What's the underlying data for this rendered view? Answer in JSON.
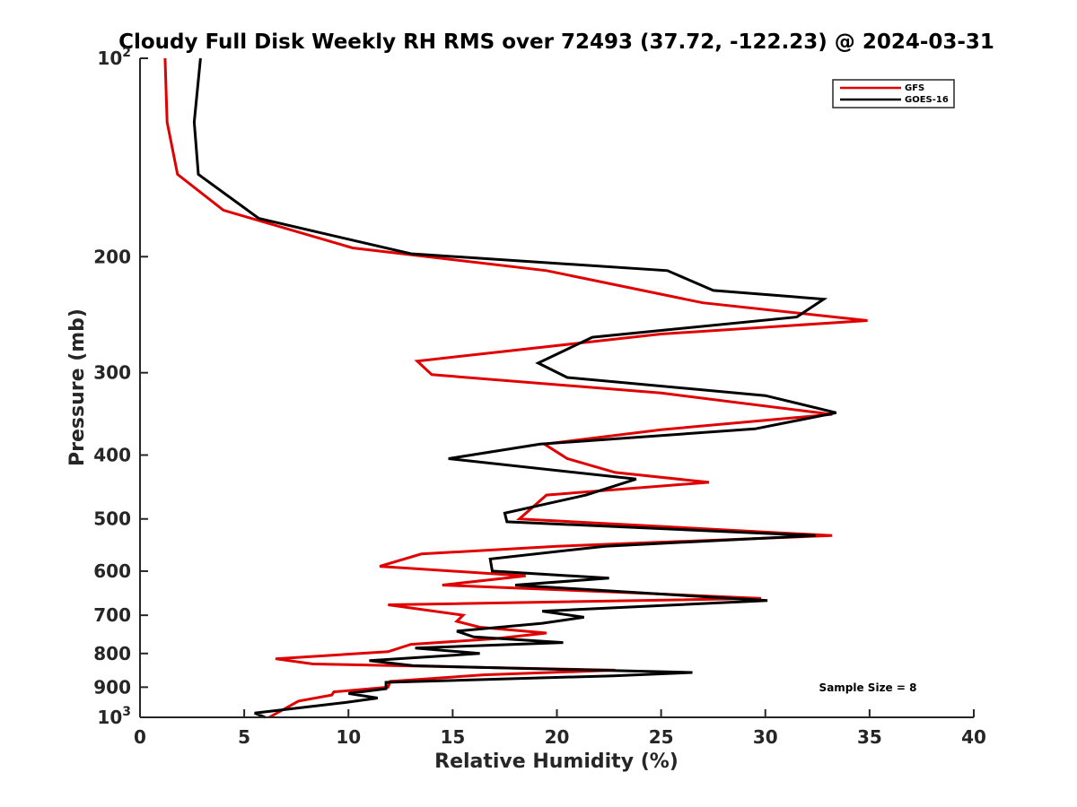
{
  "chart_data": {
    "type": "line",
    "title": "Cloudy Full Disk Weekly RH RMS over 72493 (37.72, -122.23) @ 2024-03-31",
    "xlabel": "Relative Humidity (%)",
    "ylabel": "Pressure (mb)",
    "xlim": [
      0,
      40
    ],
    "ylim": [
      100,
      1000
    ],
    "y_scale": "log",
    "y_reversed": true,
    "x_ticks": [
      0,
      5,
      10,
      15,
      20,
      25,
      30,
      35,
      40
    ],
    "y_ticks": [
      {
        "value": 100,
        "base": "10",
        "exp": "2"
      },
      {
        "value": 200,
        "label": "200"
      },
      {
        "value": 300,
        "label": "300"
      },
      {
        "value": 400,
        "label": "400"
      },
      {
        "value": 500,
        "label": "500"
      },
      {
        "value": 600,
        "label": "600"
      },
      {
        "value": 700,
        "label": "700"
      },
      {
        "value": 800,
        "label": "800"
      },
      {
        "value": 900,
        "label": "900"
      },
      {
        "value": 1000,
        "base": "10",
        "exp": "3"
      }
    ],
    "grid": false,
    "legend_position": "top-right",
    "annotation": "Sample Size = 8",
    "series": [
      {
        "name": "GFS",
        "color": "#e00000",
        "points": [
          [
            1.2,
            100
          ],
          [
            1.3,
            125
          ],
          [
            1.8,
            150
          ],
          [
            4.0,
            170
          ],
          [
            10.2,
            194
          ],
          [
            19.5,
            210
          ],
          [
            27.0,
            235
          ],
          [
            34.9,
            250
          ],
          [
            25.0,
            262
          ],
          [
            13.3,
            288
          ],
          [
            14.0,
            302
          ],
          [
            25.0,
            322
          ],
          [
            33.2,
            347
          ],
          [
            25.0,
            366
          ],
          [
            19.4,
            385
          ],
          [
            20.5,
            405
          ],
          [
            22.8,
            425
          ],
          [
            27.3,
            440
          ],
          [
            19.5,
            460
          ],
          [
            18.2,
            500
          ],
          [
            33.2,
            530
          ],
          [
            20.0,
            550
          ],
          [
            13.5,
            565
          ],
          [
            11.5,
            590
          ],
          [
            18.5,
            610
          ],
          [
            14.5,
            630
          ],
          [
            22.5,
            645
          ],
          [
            29.8,
            660
          ],
          [
            11.9,
            675
          ],
          [
            15.5,
            700
          ],
          [
            15.2,
            715
          ],
          [
            16.3,
            730
          ],
          [
            19.5,
            745
          ],
          [
            17.0,
            760
          ],
          [
            13.0,
            775
          ],
          [
            11.9,
            795
          ],
          [
            6.5,
            815
          ],
          [
            8.3,
            830
          ],
          [
            22.8,
            848
          ],
          [
            16.5,
            862
          ],
          [
            12.0,
            882
          ],
          [
            11.9,
            900
          ],
          [
            9.3,
            915
          ],
          [
            9.2,
            925
          ],
          [
            7.6,
            945
          ],
          [
            6.2,
            1000
          ]
        ]
      },
      {
        "name": "GOES-16",
        "color": "#000000",
        "points": [
          [
            2.9,
            100
          ],
          [
            2.6,
            125
          ],
          [
            2.8,
            150
          ],
          [
            5.7,
            175
          ],
          [
            13.0,
            198
          ],
          [
            25.3,
            210
          ],
          [
            27.5,
            225
          ],
          [
            32.8,
            232
          ],
          [
            31.5,
            247
          ],
          [
            21.7,
            265
          ],
          [
            19.1,
            290
          ],
          [
            20.5,
            305
          ],
          [
            30.0,
            325
          ],
          [
            33.4,
            345
          ],
          [
            29.5,
            365
          ],
          [
            19.2,
            385
          ],
          [
            14.8,
            405
          ],
          [
            23.8,
            435
          ],
          [
            21.4,
            460
          ],
          [
            17.5,
            490
          ],
          [
            17.6,
            505
          ],
          [
            32.4,
            530
          ],
          [
            22.3,
            550
          ],
          [
            16.8,
            575
          ],
          [
            16.9,
            600
          ],
          [
            22.5,
            615
          ],
          [
            18.0,
            630
          ],
          [
            30.1,
            665
          ],
          [
            19.3,
            690
          ],
          [
            21.3,
            705
          ],
          [
            19.3,
            720
          ],
          [
            15.2,
            740
          ],
          [
            16.0,
            755
          ],
          [
            20.3,
            770
          ],
          [
            13.2,
            785
          ],
          [
            16.3,
            800
          ],
          [
            11.0,
            820
          ],
          [
            13.1,
            835
          ],
          [
            26.5,
            855
          ],
          [
            22.7,
            865
          ],
          [
            11.8,
            885
          ],
          [
            11.8,
            905
          ],
          [
            10.0,
            920
          ],
          [
            11.4,
            935
          ],
          [
            9.8,
            950
          ],
          [
            5.5,
            985
          ],
          [
            6.0,
            1000
          ]
        ]
      }
    ]
  }
}
